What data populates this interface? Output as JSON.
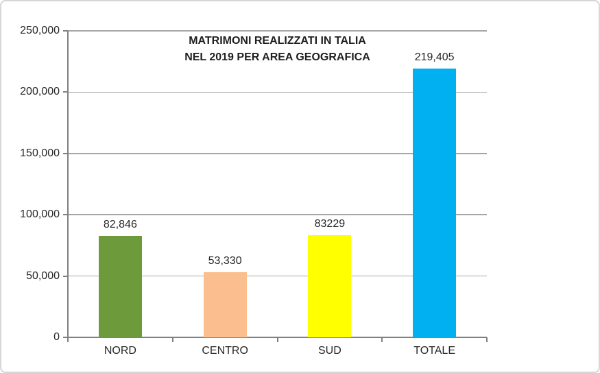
{
  "chart_data": {
    "type": "bar",
    "title": "MATRIMONI REALIZZATI IN TALIA NEL 2019 PER AREA GEOGRAFICA",
    "title_lines": [
      "MATRIMONI REALIZZATI IN TALIA",
      "NEL 2019 PER AREA GEOGRAFICA"
    ],
    "categories": [
      "NORD",
      "CENTRO",
      "SUD",
      "TOTALE"
    ],
    "values": [
      82846,
      53330,
      83229,
      219405
    ],
    "value_labels": [
      "82,846",
      "53,330",
      "83229",
      "219,405"
    ],
    "bar_colors": [
      "#6D9B3C",
      "#FBBF8F",
      "#FFFF00",
      "#00B0F0"
    ],
    "xlabel": "",
    "ylabel": "",
    "ylim": [
      0,
      250000
    ],
    "y_tick_step": 50000,
    "y_tick_labels": [
      "0",
      "50,000",
      "100,000",
      "150,000",
      "200,000",
      "250,000"
    ],
    "grid": "horizontal-only",
    "legend": "none",
    "gridline_color": "#A6A6A6",
    "axis_color": "#808080",
    "text_color": "#262626",
    "border_color": "#D6D6D6"
  }
}
